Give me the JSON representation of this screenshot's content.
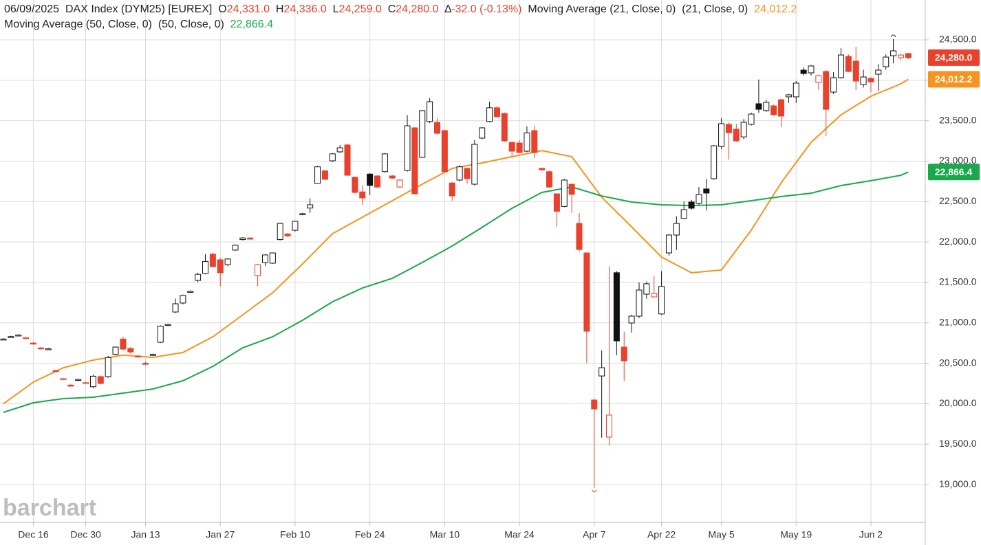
{
  "chart_data": {
    "type": "candlestick",
    "header": {
      "line1": [
        {
          "text": "06/09/2025  DAX Index (DYM25) [EUREX]  ",
          "color": "#222222"
        },
        {
          "text": "O",
          "color": "#222222"
        },
        {
          "text": "24,331.0  ",
          "color": "#e8412c"
        },
        {
          "text": "H",
          "color": "#222222"
        },
        {
          "text": "24,336.0  ",
          "color": "#e8412c"
        },
        {
          "text": "L",
          "color": "#222222"
        },
        {
          "text": "24,259.0  ",
          "color": "#e8412c"
        },
        {
          "text": "C",
          "color": "#222222"
        },
        {
          "text": "24,280.0  ",
          "color": "#e8412c"
        },
        {
          "text": "∆",
          "color": "#222222"
        },
        {
          "text": "-32.0 (-0.13%)  ",
          "color": "#e8412c"
        },
        {
          "text": "Moving Average (21, Close, 0)  (21, Close, 0)  ",
          "color": "#222222"
        },
        {
          "text": "24,012.2",
          "color": "#f7931e"
        }
      ],
      "line2": [
        {
          "text": "Moving Average (50, Close, 0)  (50, Close, 0)  ",
          "color": "#222222"
        },
        {
          "text": "22,866.4",
          "color": "#19a84a"
        }
      ]
    },
    "watermark": "barchart",
    "up_color": "#111111",
    "down_color": "#e8412c",
    "last_label": "24,280.0",
    "ohlc": [
      [
        20800,
        20810,
        20790,
        20800
      ],
      [
        20830,
        20840,
        20820,
        20830
      ],
      [
        20850,
        20860,
        20840,
        20850
      ],
      [
        20820,
        20830,
        20810,
        20820
      ],
      [
        20750,
        20760,
        20730,
        20740
      ],
      [
        20690,
        20700,
        20670,
        20680
      ],
      [
        20680,
        20690,
        20670,
        20680
      ],
      [
        20410,
        20420,
        20390,
        20400
      ],
      [
        20310,
        20320,
        20300,
        20310
      ],
      [
        20230,
        20240,
        20210,
        20220
      ],
      [
        20300,
        20310,
        20290,
        20300
      ],
      [
        20250,
        20270,
        20240,
        20260
      ],
      [
        20210,
        20360,
        20190,
        20340
      ],
      [
        20335,
        20350,
        20240,
        20250
      ],
      [
        20335,
        20590,
        20320,
        20570
      ],
      [
        20610,
        20710,
        20600,
        20700
      ],
      [
        20800,
        20830,
        20660,
        20675
      ],
      [
        20683,
        20700,
        20620,
        20640
      ],
      [
        20590,
        20600,
        20570,
        20580
      ],
      [
        20500,
        20520,
        20480,
        20490
      ],
      [
        20600,
        20620,
        20590,
        20610
      ],
      [
        20760,
        20970,
        20750,
        20960
      ],
      [
        20970,
        20990,
        20960,
        20980
      ],
      [
        21134,
        21300,
        21120,
        21236
      ],
      [
        21245,
        21350,
        21230,
        21340
      ],
      [
        21380,
        21400,
        21370,
        21390
      ],
      [
        21525,
        21620,
        21500,
        21600
      ],
      [
        21610,
        21850,
        21600,
        21760
      ],
      [
        21850,
        21870,
        21690,
        21695
      ],
      [
        21780,
        21800,
        21450,
        21620
      ],
      [
        21720,
        21800,
        21700,
        21790
      ],
      [
        21900,
        21970,
        21890,
        21960
      ],
      [
        22030,
        22060,
        22020,
        22050
      ],
      [
        22050,
        22060,
        22030,
        22035
      ],
      [
        21585,
        21730,
        21450,
        21720
      ],
      [
        21746,
        21850,
        21700,
        21840
      ],
      [
        21738,
        21870,
        21730,
        21865
      ],
      [
        22030,
        22240,
        22020,
        22230
      ],
      [
        22100,
        22110,
        22060,
        22075
      ],
      [
        22145,
        22260,
        22130,
        22256
      ],
      [
        22340,
        22360,
        22330,
        22350
      ],
      [
        22420,
        22540,
        22360,
        22460
      ],
      [
        22725,
        22940,
        22720,
        22930
      ],
      [
        22880,
        22890,
        22770,
        22775
      ],
      [
        23004,
        23100,
        22990,
        23090
      ],
      [
        23115,
        23200,
        23100,
        23165
      ],
      [
        23200,
        23210,
        22820,
        22825
      ],
      [
        22800,
        22810,
        22600,
        22613
      ],
      [
        22620,
        22700,
        22460,
        22545
      ],
      [
        22840,
        22850,
        22580,
        22700
      ],
      [
        22817,
        22830,
        22670,
        22680
      ],
      [
        22870,
        23100,
        22860,
        23090
      ],
      [
        22817,
        22830,
        22780,
        22790
      ],
      [
        22680,
        22780,
        22670,
        22766
      ],
      [
        22885,
        23570,
        22870,
        23437
      ],
      [
        23412,
        23420,
        22590,
        22596
      ],
      [
        23047,
        23630,
        23040,
        23625
      ],
      [
        23490,
        23780,
        23470,
        23735
      ],
      [
        23480,
        23530,
        23330,
        23344
      ],
      [
        23378,
        23390,
        22860,
        22870
      ],
      [
        22730,
        22740,
        22510,
        22570
      ],
      [
        22766,
        22950,
        22750,
        22930
      ],
      [
        22910,
        22920,
        22720,
        22783
      ],
      [
        22715,
        23260,
        22700,
        23208
      ],
      [
        23285,
        23420,
        23270,
        23412
      ],
      [
        23490,
        23735,
        23480,
        23660
      ],
      [
        23660,
        23680,
        23540,
        23550
      ],
      [
        23590,
        23600,
        23240,
        23250
      ],
      [
        23233,
        23240,
        23050,
        23123
      ],
      [
        23225,
        23260,
        23100,
        23106
      ],
      [
        23123,
        23430,
        23110,
        23350
      ],
      [
        23378,
        23440,
        23040,
        23106
      ],
      [
        22910,
        22920,
        22880,
        22893
      ],
      [
        22870,
        22880,
        22670,
        22680
      ],
      [
        22596,
        22600,
        22190,
        22380
      ],
      [
        22440,
        22780,
        22430,
        22766
      ],
      [
        22715,
        22720,
        22360,
        22590
      ],
      [
        22230,
        22360,
        21880,
        21907
      ],
      [
        21865,
        21870,
        20500,
        20896
      ],
      [
        20046,
        20060,
        18960,
        19935
      ],
      [
        20343,
        20660,
        19580,
        20445
      ],
      [
        19587,
        21700,
        19480,
        19859
      ],
      [
        21620,
        21640,
        20600,
        20777
      ],
      [
        20700,
        20890,
        20284,
        20530
      ],
      [
        20998,
        21100,
        20880,
        21083
      ],
      [
        21083,
        21500,
        21060,
        21406
      ],
      [
        21355,
        21510,
        21300,
        21483
      ],
      [
        21321,
        21580,
        21310,
        21364
      ],
      [
        21110,
        21640,
        21100,
        21450
      ],
      [
        21865,
        22100,
        21830,
        22086
      ],
      [
        22086,
        22320,
        21900,
        22230
      ],
      [
        22290,
        22500,
        22280,
        22400
      ],
      [
        22494,
        22520,
        22400,
        22418
      ],
      [
        22477,
        22680,
        22460,
        22588
      ],
      [
        22656,
        22780,
        22390,
        22605
      ],
      [
        22783,
        23200,
        22770,
        23190
      ],
      [
        23182,
        23530,
        23150,
        23463
      ],
      [
        23455,
        23480,
        23020,
        23352
      ],
      [
        23395,
        23460,
        23240,
        23250
      ],
      [
        23300,
        23520,
        23270,
        23480
      ],
      [
        23455,
        23600,
        23440,
        23582
      ],
      [
        23710,
        24010,
        23600,
        23641
      ],
      [
        23625,
        23760,
        23610,
        23727
      ],
      [
        23684,
        23700,
        23560,
        23574
      ],
      [
        23760,
        23770,
        23420,
        23557
      ],
      [
        23795,
        23830,
        23720,
        23820
      ],
      [
        23795,
        23990,
        23720,
        23965
      ],
      [
        24126,
        24160,
        24060,
        24083
      ],
      [
        24092,
        24190,
        24060,
        24177
      ],
      [
        23973,
        24070,
        23880,
        24058
      ],
      [
        24109,
        24130,
        23310,
        23641
      ],
      [
        23854,
        24100,
        23830,
        24032
      ],
      [
        24032,
        24400,
        24020,
        24313
      ],
      [
        24296,
        24320,
        24100,
        24109
      ],
      [
        24237,
        24415,
        23880,
        23990
      ],
      [
        23947,
        24130,
        23910,
        24041
      ],
      [
        24024,
        24040,
        23850,
        23981
      ],
      [
        24075,
        24200,
        23870,
        24126
      ],
      [
        24168,
        24320,
        24130,
        24287
      ],
      [
        24304,
        24510,
        24210,
        24364
      ],
      [
        24279,
        24330,
        24250,
        24312
      ],
      [
        24331,
        24336,
        24259,
        24280
      ]
    ],
    "series": [
      {
        "color": "#f7931e",
        "last_label": "24,012.2",
        "x": [
          0,
          4,
          8,
          12,
          16,
          20,
          24,
          28,
          32,
          36,
          40,
          44,
          48,
          52,
          56,
          60,
          64,
          68,
          72,
          76,
          80,
          84,
          88,
          92,
          96,
          100,
          104,
          108,
          112,
          116,
          120,
          121
        ],
        "values": [
          20000,
          20267,
          20445,
          20539,
          20600,
          20573,
          20633,
          20828,
          21100,
          21372,
          21729,
          22103,
          22307,
          22511,
          22715,
          22910,
          22978,
          23055,
          23131,
          23055,
          22554,
          22188,
          21814,
          21619,
          21653,
          22146,
          22732,
          23233,
          23573,
          23803,
          23956,
          24012.2
        ]
      },
      {
        "color": "#19a84a",
        "last_label": "22,866.4",
        "x": [
          0,
          4,
          8,
          12,
          16,
          20,
          24,
          28,
          32,
          36,
          40,
          44,
          48,
          52,
          56,
          60,
          64,
          68,
          72,
          76,
          80,
          84,
          88,
          92,
          96,
          100,
          104,
          108,
          112,
          116,
          120,
          121
        ],
        "values": [
          19893,
          20012,
          20063,
          20080,
          20131,
          20182,
          20284,
          20462,
          20692,
          20828,
          21032,
          21261,
          21431,
          21551,
          21746,
          21950,
          22180,
          22417,
          22613,
          22681,
          22570,
          22494,
          22460,
          22451,
          22460,
          22511,
          22562,
          22604,
          22698,
          22758,
          22825,
          22866.4
        ]
      }
    ],
    "xlim": [
      -0.46,
      123.27
    ],
    "xticks": [
      {
        "value": 4,
        "label": "Dec 16"
      },
      {
        "value": 11,
        "label": "Dec 30"
      },
      {
        "value": 19,
        "label": "Jan 13"
      },
      {
        "value": 29,
        "label": "Jan 27"
      },
      {
        "value": 39,
        "label": "Feb 10"
      },
      {
        "value": 49,
        "label": "Feb 24"
      },
      {
        "value": 59,
        "label": "Mar 10"
      },
      {
        "value": 69,
        "label": "Mar 24"
      },
      {
        "value": 79,
        "label": "Apr 7"
      },
      {
        "value": 88,
        "label": "Apr 22"
      },
      {
        "value": 96,
        "label": "May 5"
      },
      {
        "value": 106,
        "label": "May 19"
      },
      {
        "value": 116,
        "label": "Jun 2"
      }
    ],
    "ylim": [
      18533,
      24993
    ],
    "yticks": [
      {
        "value": 19000,
        "label": "19,000.0"
      },
      {
        "value": 19500,
        "label": "19,500.0"
      },
      {
        "value": 20000,
        "label": "20,000.0"
      },
      {
        "value": 20500,
        "label": "20,500.0"
      },
      {
        "value": 21000,
        "label": "21,000.0"
      },
      {
        "value": 21500,
        "label": "21,500.0"
      },
      {
        "value": 22000,
        "label": "22,000.0"
      },
      {
        "value": 22500,
        "label": "22,500.0"
      },
      {
        "value": 23000,
        "label": "23,000.0"
      },
      {
        "value": 23500,
        "label": "23,500.0"
      },
      {
        "value": 24000,
        "label": "24,000.0"
      },
      {
        "value": 24500,
        "label": "24,500.0"
      }
    ],
    "grid": true,
    "high_marker": 119,
    "low_marker": 79
  }
}
